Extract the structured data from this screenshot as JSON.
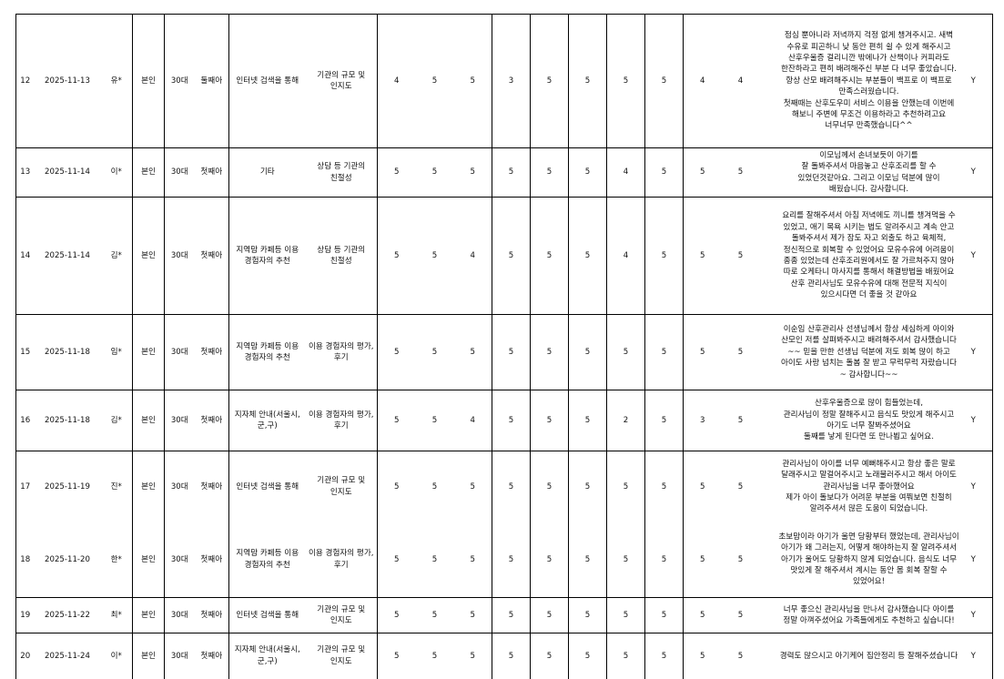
{
  "table": {
    "rows": [
      {
        "no": "12",
        "date": "2025-11-13",
        "name": "유*",
        "relation": "본인",
        "age": "30대",
        "child": "둘째아",
        "channel": "인터넷 검색을 통해",
        "reason": "기관의 규모 및 인지도",
        "scores": [
          "4",
          "5",
          "5",
          "3",
          "5",
          "5",
          "5",
          "5",
          "4",
          "4"
        ],
        "comment": "점심 뿐아니라 저녁까지 걱정 없게 챙겨주시고. 새벽 수유로 피곤하니 낮 동안 편히 쉴 수 있게 해주시고 산후우울증 걸리니깐 밖에나가 산책이나 커피라도 한잔하라고 편히 배려해주신 부분 다 너무 좋았습니다.\n항상 산모 배려해주시는 부분들이 백프로 이 백프로 만족스러웠습니다.\n첫째때는 산후도우미 서비스 이용을 안했는데 이번에 해보니 주변에 무조건 이용하라고 추천하려고요\n너무너무 만족했습니다^^",
        "consent": "Y"
      },
      {
        "no": "13",
        "date": "2025-11-14",
        "name": "이*",
        "relation": "본인",
        "age": "30대",
        "child": "첫째아",
        "channel": "기타",
        "reason": "상담 등 기관의 친절성",
        "scores": [
          "5",
          "5",
          "5",
          "5",
          "5",
          "5",
          "4",
          "5",
          "5",
          "5"
        ],
        "comment": "이모님께서 손녀보듯이 아기를\n잘 돌봐주셔서 마음놓고 산후조리를 할 수 있었던것같아요. 그리고 이모님 덕분에 많이 배웠습니다. 감사합니다.",
        "consent": "Y"
      },
      {
        "no": "14",
        "date": "2025-11-14",
        "name": "김*",
        "relation": "본인",
        "age": "30대",
        "child": "첫째아",
        "channel": "지역맘 카페등 이용 경험자의 추천",
        "reason": "상담 등 기관의 친절성",
        "scores": [
          "5",
          "5",
          "4",
          "5",
          "5",
          "5",
          "4",
          "5",
          "5",
          "5"
        ],
        "comment": "요리를 잘해주셔서 아침 저녁에도 끼니를 챙겨먹을 수 있었고, 애기 목욕 시키는 법도 알려주시고 계속 안고 돌봐주셔서 제가 잠도 자고 외출도 하고 육체적, 정신적으로 회복할 수 있었어요 모유수유에 어려움이 종종 있었는데 산후조리원에서도 잘 가르쳐주지 않아 따로 오케타니 마사지를 통해서 해결방법을 배웠어요 산후 관리사님도 모유수유에 대해 전문적 지식이 있으시다면 더 좋을 것 같아요",
        "consent": "Y"
      },
      {
        "no": "15",
        "date": "2025-11-18",
        "name": "임*",
        "relation": "본인",
        "age": "30대",
        "child": "첫째아",
        "channel": "지역맘 카페등 이용 경험자의 추천",
        "reason": "이용 경험자의 평가, 후기",
        "scores": [
          "5",
          "5",
          "5",
          "5",
          "5",
          "5",
          "5",
          "5",
          "5",
          "5"
        ],
        "comment": "이순임 산후관리사 선생님께서 항상 세심하게 아이와 산모인 저를 살펴봐주시고 배려해주셔서 감사했습니다~~ 믿을 만한 선생님 덕분에 저도 회복 많이 하고 아이도 사랑 넘치는 돌봄 잘 받고 무럭무럭 자랐습니다~ 감사합니다~~",
        "consent": "Y"
      },
      {
        "no": "16",
        "date": "2025-11-18",
        "name": "김*",
        "relation": "본인",
        "age": "30대",
        "child": "첫째아",
        "channel": "지자체 안내(서울시, 군,구)",
        "reason": "이용 경험자의 평가, 후기",
        "scores": [
          "5",
          "5",
          "4",
          "5",
          "5",
          "5",
          "2",
          "5",
          "3",
          "5"
        ],
        "comment": "산후우울증으로 많이 힘들었는데,\n관리사님이 정말 잘해주시고 음식도 맛있게 해주시고\n아기도 너무 잘봐주셨어요\n둘째를 낳게 된다면 또 만나뵙고 싶어요.",
        "consent": "Y"
      },
      {
        "no": "17",
        "date": "2025-11-19",
        "name": "진*",
        "relation": "본인",
        "age": "30대",
        "child": "첫째아",
        "channel": "인터넷 검색을 통해",
        "reason": "기관의 규모 및 인지도",
        "scores": [
          "5",
          "5",
          "5",
          "5",
          "5",
          "5",
          "5",
          "5",
          "5",
          "5"
        ],
        "comment": "관리사님이 아이를 너무 예뻐해주시고 항상 좋은 말로 달래주시고 말걸어주시고 노래불러주시고 해서 아이도 관리사님을 너무 좋아했어요\n제가 아이 돌보다가 어려운 부분을 여쭤보면 친절히 알려주셔서 많은 도움이 되었습니다.",
        "consent": "Y"
      },
      {
        "no": "18",
        "date": "2025-11-20",
        "name": "한*",
        "relation": "본인",
        "age": "30대",
        "child": "첫째아",
        "channel": "지역맘 카페등 이용 경험자의 추천",
        "reason": "이용 경험자의 평가, 후기",
        "scores": [
          "5",
          "5",
          "5",
          "5",
          "5",
          "5",
          "5",
          "5",
          "5",
          "5"
        ],
        "comment": "초보맘이라 아기가 울면 당황부터 했었는데, 관리사님이 아기가 왜 그러는지, 어떻게 해야하는지 잘 알려주셔서 아기가 울어도 당황하지 않게 되었습니다. 음식도 너무 맛있게 잘 해주셔서 계시는 동안 몸 회복 잘할 수 있었어요!",
        "consent": "Y"
      },
      {
        "no": "19",
        "date": "2025-11-22",
        "name": "최*",
        "relation": "본인",
        "age": "30대",
        "child": "첫째아",
        "channel": "인터넷 검색을 통해",
        "reason": "기관의 규모 및 인지도",
        "scores": [
          "5",
          "5",
          "5",
          "5",
          "5",
          "5",
          "5",
          "5",
          "5",
          "5"
        ],
        "comment": "너무 좋으신 관리사님을 만나서 감사했습니다 아이를 정말 아껴주셨어요 가족들에게도 추천하고 싶습니다!",
        "consent": "Y"
      },
      {
        "no": "20",
        "date": "2025-11-24",
        "name": "이*",
        "relation": "본인",
        "age": "30대",
        "child": "첫째아",
        "channel": "지자체 안내(서울시, 군,구)",
        "reason": "기관의 규모 및 인지도",
        "scores": [
          "5",
          "5",
          "5",
          "5",
          "5",
          "5",
          "5",
          "5",
          "5",
          "5"
        ],
        "comment": "경력도 많으시고 아기케어 집안정리 등 잘해주셨습니다",
        "consent": "Y"
      }
    ]
  }
}
